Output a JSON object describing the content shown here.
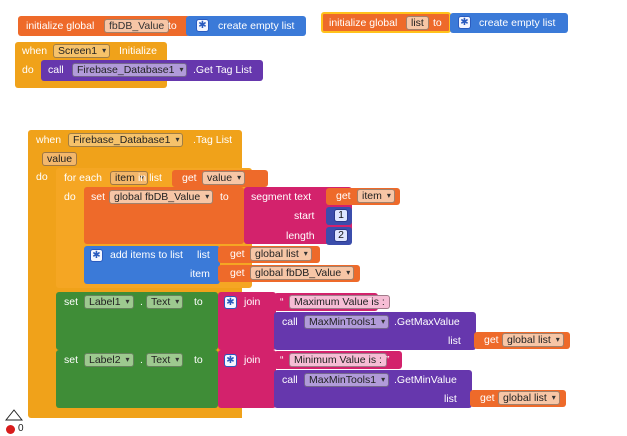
{
  "block1": {
    "init": "initialize global",
    "var": "fbDB_Value",
    "to": "to",
    "list": "create empty list"
  },
  "block2": {
    "init": "initialize global",
    "var": "list",
    "to": "to",
    "list": "create empty list"
  },
  "block3": {
    "when": "when",
    "component": "Screen1",
    "event": "Initialize",
    "do": "do",
    "call": "call",
    "db": "Firebase_Database1",
    "method": ".Get Tag List"
  },
  "block4": {
    "when": "when",
    "component": "Firebase_Database1",
    "event": ".Tag List",
    "param": "value",
    "do": "do",
    "foreach": {
      "label": "for each",
      "item": "item",
      "in_list": "in list",
      "get": "get",
      "value": "value",
      "do": "do"
    },
    "set1": {
      "set": "set",
      "var": "global fbDB_Value",
      "to": "to",
      "segment": "segment  text",
      "get": "get",
      "item": "item",
      "start": "start",
      "start_val": "1",
      "length": "length",
      "length_val": "2"
    },
    "additems": {
      "label": "add items to list",
      "list": "list",
      "get1": "get",
      "list_var": "global list",
      "item": "item",
      "get2": "get",
      "item_var": "global fbDB_Value"
    },
    "label1": {
      "set": "set",
      "comp": "Label1",
      "prop": "Text",
      "to": "to",
      "join": "join",
      "text": "Maximum Value is :",
      "call": "call",
      "tool": "MaxMinTools1",
      "method": ".GetMaxValue",
      "list": "list",
      "get": "get",
      "list_var": "global list"
    },
    "label2": {
      "set": "set",
      "comp": "Label2",
      "prop": "Text",
      "to": "to",
      "join": "join",
      "text": "Minimum Value is :",
      "call": "call",
      "tool": "MaxMinTools1",
      "method": ".GetMinValue",
      "list": "list",
      "get": "get",
      "list_var": "global list"
    }
  },
  "corner": {
    "count": "0"
  }
}
